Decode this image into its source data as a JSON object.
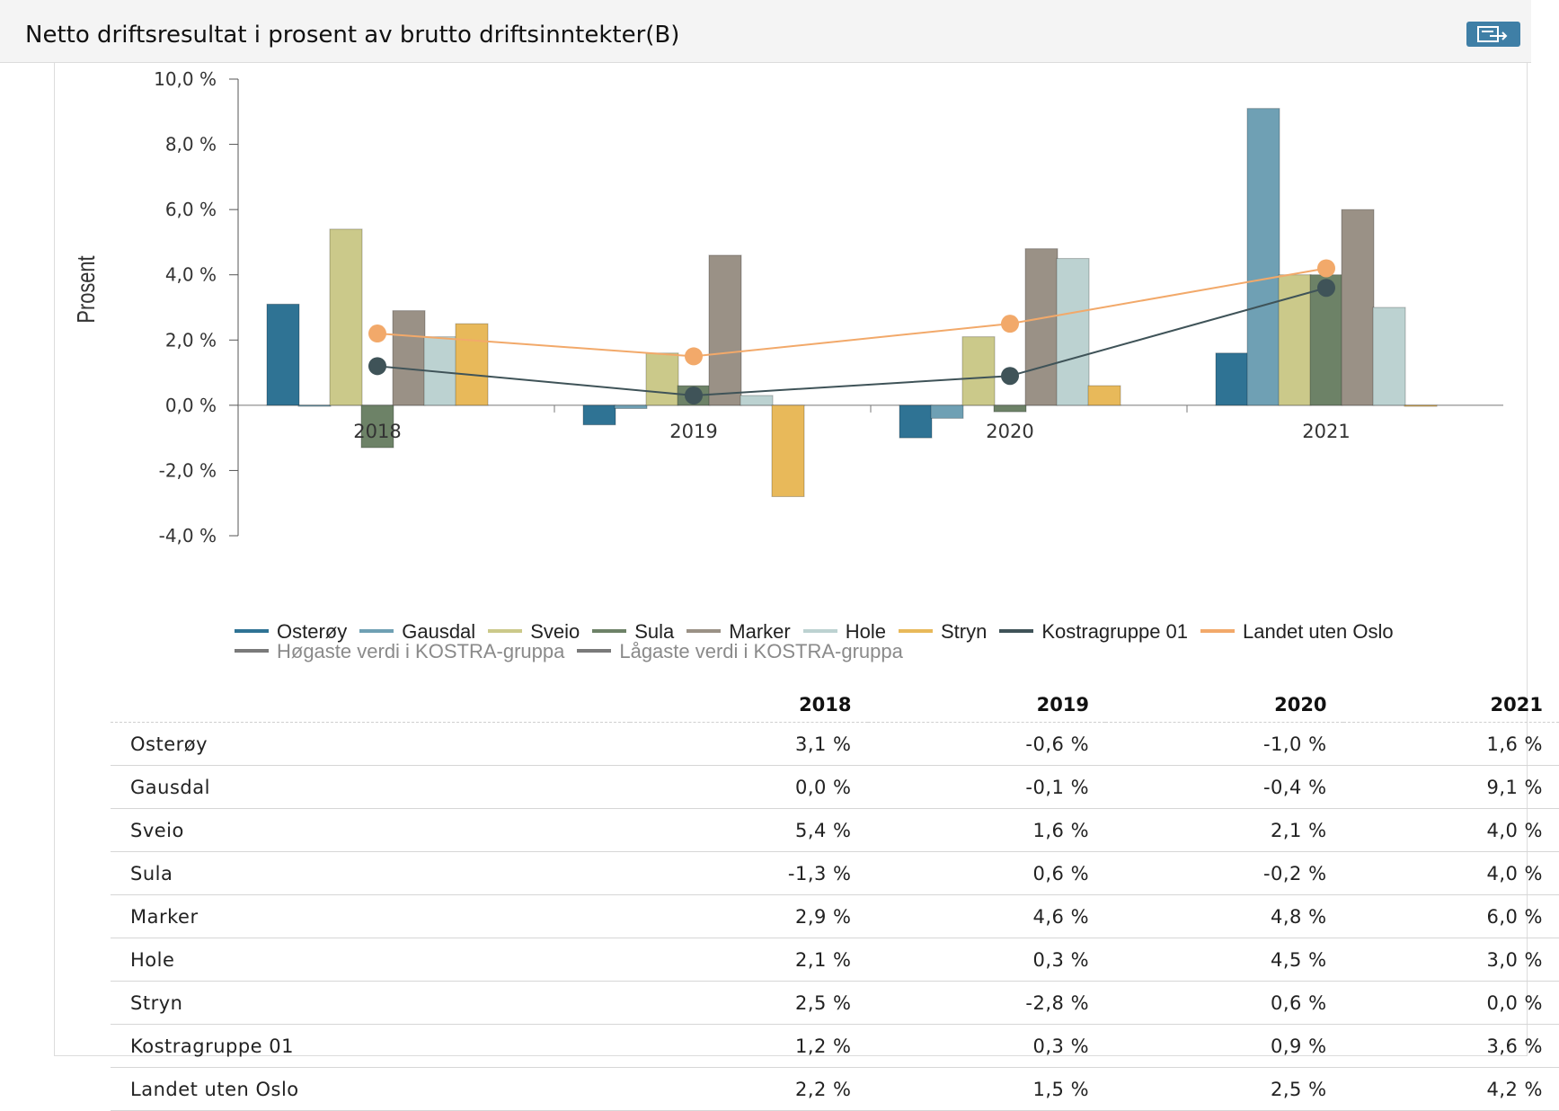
{
  "header": {
    "title": "Netto driftsresultat i prosent av brutto driftsinntekter(B)",
    "export_icon": "export-icon"
  },
  "colors": {
    "Osterøy": "#2f7394",
    "Gausdal": "#6fa0b4",
    "Sveio": "#cbc98a",
    "Sula": "#6d8267",
    "Marker": "#9a9186",
    "Hole": "#bcd2d1",
    "Stryn": "#e8b95a",
    "Kostragruppe 01": "#3f5358",
    "Landet uten Oslo": "#f2a96a",
    "Høgaste verdi i KOSTRA-gruppa": "#7a7a7a",
    "Lågaste verdi i KOSTRA-gruppa": "#7a7a7a"
  },
  "chart_data": {
    "type": "bar",
    "ylabel": "Prosent",
    "ylim": [
      -4,
      10
    ],
    "yticks": [
      -4,
      -2,
      0,
      2,
      4,
      6,
      8,
      10
    ],
    "ytick_labels": [
      "-4,0 %",
      "-2,0 %",
      "0,0 %",
      "2,0 %",
      "4,0 %",
      "6,0 %",
      "8,0 %",
      "10,0 %"
    ],
    "categories": [
      "2018",
      "2019",
      "2020",
      "2021"
    ],
    "grid": false,
    "legend_position": "bottom",
    "series": [
      {
        "name": "Osterøy",
        "kind": "bar",
        "values": [
          3.1,
          -0.6,
          -1.0,
          1.6
        ]
      },
      {
        "name": "Gausdal",
        "kind": "bar",
        "values": [
          0.0,
          -0.1,
          -0.4,
          9.1
        ]
      },
      {
        "name": "Sveio",
        "kind": "bar",
        "values": [
          5.4,
          1.6,
          2.1,
          4.0
        ]
      },
      {
        "name": "Sula",
        "kind": "bar",
        "values": [
          -1.3,
          0.6,
          -0.2,
          4.0
        ]
      },
      {
        "name": "Marker",
        "kind": "bar",
        "values": [
          2.9,
          4.6,
          4.8,
          6.0
        ]
      },
      {
        "name": "Hole",
        "kind": "bar",
        "values": [
          2.1,
          0.3,
          4.5,
          3.0
        ]
      },
      {
        "name": "Stryn",
        "kind": "bar",
        "values": [
          2.5,
          -2.8,
          0.6,
          0.0
        ]
      },
      {
        "name": "Kostragruppe 01",
        "kind": "line",
        "values": [
          1.2,
          0.3,
          0.9,
          3.6
        ]
      },
      {
        "name": "Landet uten Oslo",
        "kind": "line",
        "values": [
          2.2,
          1.5,
          2.5,
          4.2
        ]
      }
    ],
    "legend": [
      "Osterøy",
      "Gausdal",
      "Sveio",
      "Sula",
      "Marker",
      "Hole",
      "Stryn",
      "Kostragruppe 01",
      "Landet uten Oslo",
      "Høgaste verdi i KOSTRA-gruppa",
      "Lågaste verdi i KOSTRA-gruppa"
    ],
    "muted_legend": [
      "Høgaste verdi i KOSTRA-gruppa",
      "Lågaste verdi i KOSTRA-gruppa"
    ]
  },
  "table": {
    "headers": [
      "",
      "2018",
      "2019",
      "2020",
      "2021"
    ],
    "rows": [
      [
        "Osterøy",
        "3,1 %",
        "-0,6 %",
        "-1,0 %",
        "1,6 %"
      ],
      [
        "Gausdal",
        "0,0 %",
        "-0,1 %",
        "-0,4 %",
        "9,1 %"
      ],
      [
        "Sveio",
        "5,4 %",
        "1,6 %",
        "2,1 %",
        "4,0 %"
      ],
      [
        "Sula",
        "-1,3 %",
        "0,6 %",
        "-0,2 %",
        "4,0 %"
      ],
      [
        "Marker",
        "2,9 %",
        "4,6 %",
        "4,8 %",
        "6,0 %"
      ],
      [
        "Hole",
        "2,1 %",
        "0,3 %",
        "4,5 %",
        "3,0 %"
      ],
      [
        "Stryn",
        "2,5 %",
        "-2,8 %",
        "0,6 %",
        "0,0 %"
      ],
      [
        "Kostragruppe 01",
        "1,2 %",
        "0,3 %",
        "0,9 %",
        "3,6 %"
      ],
      [
        "Landet uten Oslo",
        "2,2 %",
        "1,5 %",
        "2,5 %",
        "4,2 %"
      ]
    ]
  }
}
